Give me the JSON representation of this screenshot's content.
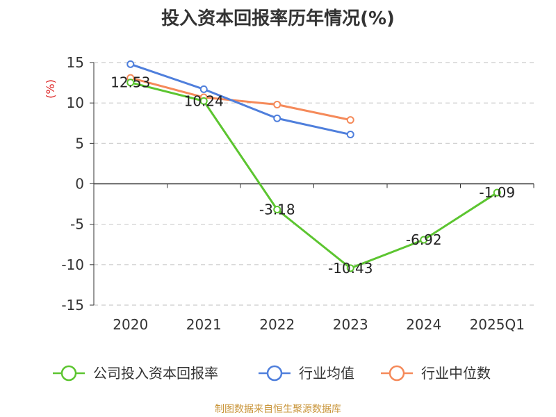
{
  "header": {
    "title": "投入资本回报率历年情况(%)"
  },
  "footer": {
    "source": "制图数据来自恒生聚源数据库"
  },
  "chart_data": {
    "type": "line",
    "title": "投入资本回报率历年情况(%)",
    "ylabel": "(%)",
    "xlabel": "",
    "categories": [
      "2020",
      "2021",
      "2022",
      "2023",
      "2024",
      "2025Q1"
    ],
    "ylim": [
      -15,
      15
    ],
    "yticks": [
      15,
      10,
      5,
      0,
      -5,
      -10,
      -15
    ],
    "grid": true,
    "legend_position": "bottom",
    "series": [
      {
        "name": "公司投入资本回报率",
        "color": "#5cc530",
        "values": [
          12.53,
          10.24,
          -3.18,
          -10.43,
          -6.92,
          -1.09
        ],
        "labels": [
          "12.53",
          "10.24",
          "-3.18",
          "-10.43",
          "-6.92",
          "-1.09"
        ]
      },
      {
        "name": "行业均值",
        "color": "#4f7fdc",
        "values": [
          14.8,
          11.7,
          8.1,
          6.1,
          null,
          null
        ]
      },
      {
        "name": "行业中位数",
        "color": "#f58a5a",
        "values": [
          13.1,
          10.7,
          9.8,
          7.9,
          null,
          null
        ]
      }
    ]
  }
}
